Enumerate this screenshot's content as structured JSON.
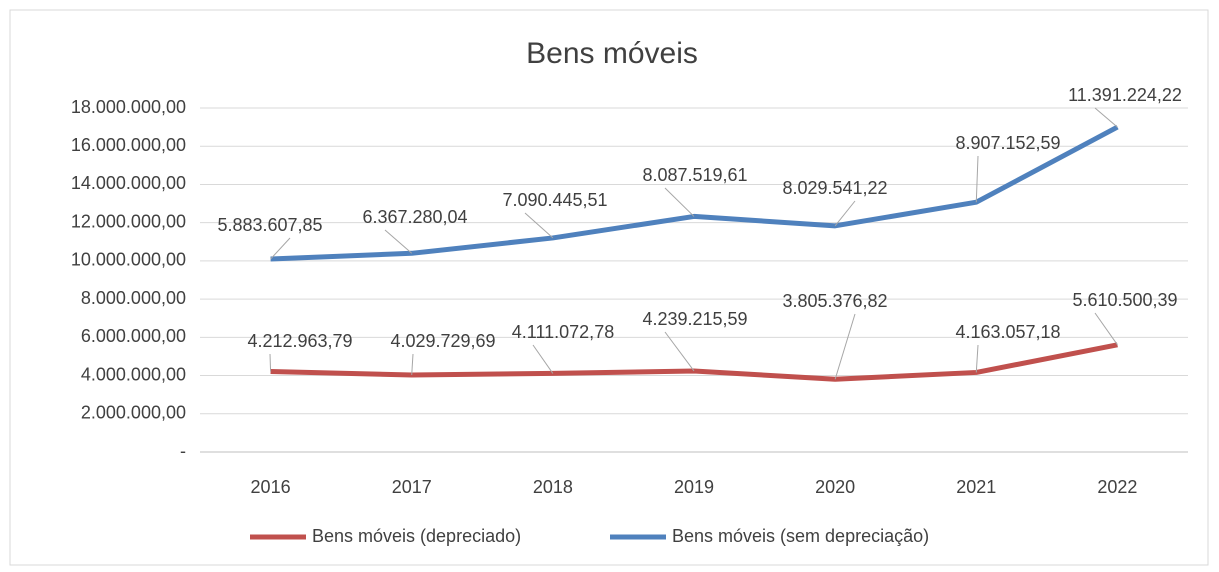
{
  "chart_data": {
    "type": "line",
    "stacked": true,
    "title": "Bens móveis",
    "categories": [
      "2016",
      "2017",
      "2018",
      "2019",
      "2020",
      "2021",
      "2022"
    ],
    "series": [
      {
        "name": "Bens móveis (depreciado)",
        "color": "#c0504d",
        "values": [
          4212963.79,
          4029729.69,
          4111072.78,
          4239215.59,
          3805376.82,
          4163057.18,
          5610500.39
        ],
        "value_labels": [
          "4.212.963,79",
          "4.029.729,69",
          "4.111.072,78",
          "4.239.215,59",
          "3.805.376,82",
          "4.163.057,18",
          "5.610.500,39"
        ]
      },
      {
        "name": "Bens móveis (sem depreciação)",
        "color": "#4f81bd",
        "values": [
          5883607.85,
          6367280.04,
          7090445.51,
          8087519.61,
          8029541.22,
          8907152.59,
          11391224.22
        ],
        "value_labels": [
          "5.883.607,85",
          "6.367.280,04",
          "7.090.445,51",
          "8.087.519,61",
          "8.029.541,22",
          "8.907.152,59",
          "11.391.224,22"
        ]
      }
    ],
    "ylim": [
      0,
      18000000
    ],
    "yticks": [
      {
        "value": 0,
        "label": "-"
      },
      {
        "value": 2000000,
        "label": "2.000.000,00"
      },
      {
        "value": 4000000,
        "label": "4.000.000,00"
      },
      {
        "value": 6000000,
        "label": "6.000.000,00"
      },
      {
        "value": 8000000,
        "label": "8.000.000,00"
      },
      {
        "value": 10000000,
        "label": "10.000.000,00"
      },
      {
        "value": 12000000,
        "label": "12.000.000,00"
      },
      {
        "value": 14000000,
        "label": "14.000.000,00"
      },
      {
        "value": 16000000,
        "label": "16.000.000,00"
      },
      {
        "value": 18000000,
        "label": "18.000.000,00"
      }
    ],
    "grid": true,
    "legend": "bottom"
  }
}
